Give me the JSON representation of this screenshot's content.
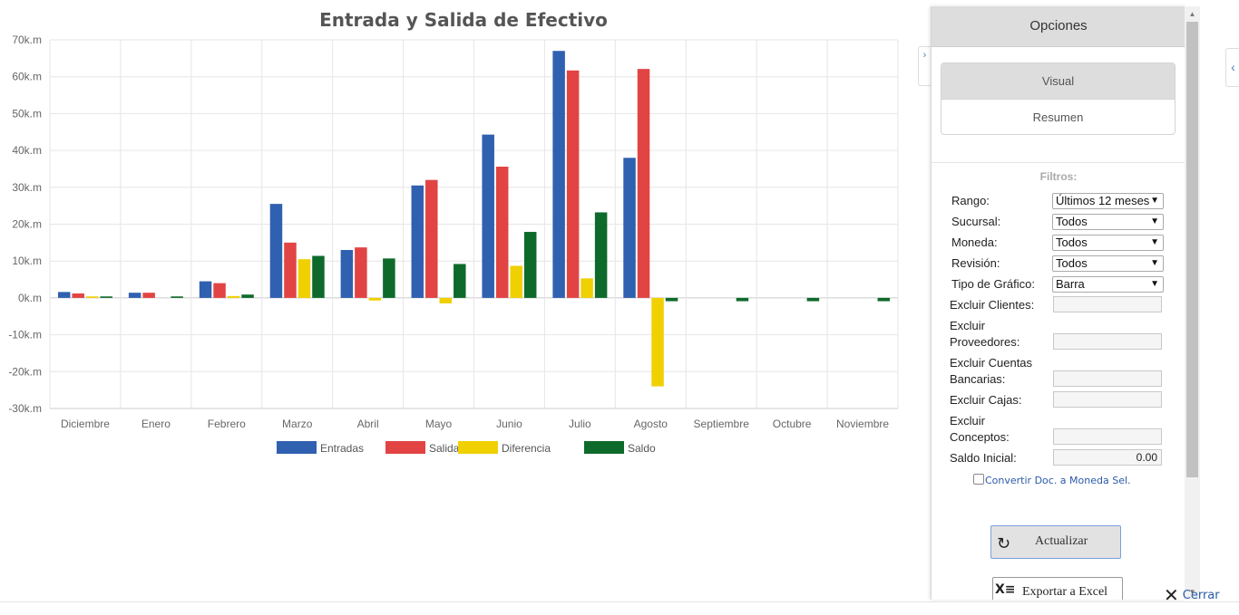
{
  "chart_data": {
    "type": "bar",
    "title": "Entrada y Salida de Efectivo",
    "xlabel": "",
    "ylabel": "",
    "ylim": [
      -30,
      70
    ],
    "ytick_values": [
      70,
      60,
      50,
      40,
      30,
      20,
      10,
      0,
      -10,
      -20,
      -30
    ],
    "yticks": [
      "70k.m",
      "60k.m",
      "50k.m",
      "40k.m",
      "30k.m",
      "20k.m",
      "10k.m",
      "0k.m",
      "-10k.m",
      "-20k.m",
      "-30k.m"
    ],
    "categories": [
      "Diciembre",
      "Enero",
      "Febrero",
      "Marzo",
      "Abril",
      "Mayo",
      "Junio",
      "Julio",
      "Agosto",
      "Septiembre",
      "Octubre",
      "Noviembre"
    ],
    "legend_position": "bottom",
    "grid": true,
    "series": [
      {
        "name": "Entradas",
        "color": "#3060b0",
        "values": [
          1.6,
          1.4,
          4.5,
          25.5,
          13.0,
          30.5,
          44.3,
          67.0,
          38.0,
          0,
          0,
          0
        ]
      },
      {
        "name": "Salidas",
        "color": "#e24444",
        "values": [
          1.2,
          1.4,
          4.0,
          15.0,
          13.7,
          32.0,
          35.6,
          61.7,
          62.1,
          0,
          0,
          0
        ]
      },
      {
        "name": "Diferencia",
        "color": "#f0d000",
        "values": [
          0.4,
          0.0,
          0.5,
          10.5,
          -0.7,
          -1.5,
          8.7,
          5.3,
          -24.0,
          0,
          0,
          0
        ]
      },
      {
        "name": "Saldo",
        "color": "#0e6a2b",
        "values": [
          0.4,
          0.4,
          0.9,
          11.4,
          10.7,
          9.2,
          17.9,
          23.2,
          -0.9,
          -0.9,
          -0.9,
          -0.9
        ]
      }
    ]
  },
  "panel": {
    "header": "Opciones",
    "tabs": [
      "Visual",
      "Resumen"
    ],
    "filters_title": "Filtros:",
    "rango_label": "Rango:",
    "rango_value": "Últimos 12 meses",
    "sucursal_label": "Sucursal:",
    "sucursal_value": "Todos",
    "moneda_label": "Moneda:",
    "moneda_value": "Todos",
    "revision_label": "Revisión:",
    "revision_value": "Todos",
    "tipo_label": "Tipo de Gráfico:",
    "tipo_value": "Barra",
    "excl_clientes_label": "Excluir Clientes:",
    "excl_proveedores_label1": "Excluir",
    "excl_proveedores_label2": "Proveedores:",
    "excl_cuentas_label1": "Excluir Cuentas",
    "excl_cuentas_label2": "Bancarias:",
    "excl_cajas_label": "Excluir Cajas:",
    "excl_conceptos_label1": "Excluir",
    "excl_conceptos_label2": "Conceptos:",
    "saldo_label": "Saldo Inicial:",
    "saldo_value": "0.00",
    "convert_label": "Convertir Doc. a Moneda Sel.",
    "update_label": "Actualizar",
    "export_label": "Exportar a Excel"
  },
  "close_label": "Cerrar"
}
